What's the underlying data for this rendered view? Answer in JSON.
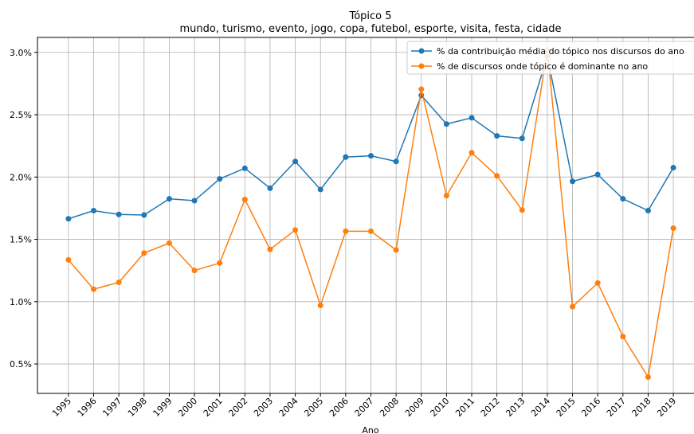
{
  "chart_data": {
    "type": "line",
    "title": "Tópico 5",
    "subtitle": "mundo, turismo, evento, jogo, copa, futebol, esporte, visita, festa, cidade",
    "x_label": "Ano",
    "x": [
      1995,
      1996,
      1997,
      1998,
      1999,
      2000,
      2001,
      2002,
      2003,
      2004,
      2005,
      2006,
      2007,
      2008,
      2009,
      2010,
      2011,
      2012,
      2013,
      2014,
      2015,
      2016,
      2017,
      2018,
      2019
    ],
    "series": [
      {
        "name": "% da contribuição média do tópico nos discursos do ano",
        "color": "#1f77b4",
        "values": [
          1.665,
          1.73,
          1.7,
          1.695,
          1.825,
          1.81,
          1.985,
          2.07,
          1.91,
          2.125,
          1.9,
          2.16,
          2.17,
          2.125,
          2.655,
          2.425,
          2.475,
          2.33,
          2.31,
          2.97,
          1.965,
          2.02,
          1.825,
          1.73,
          2.075
        ]
      },
      {
        "name": "% de discursos onde tópico é dominante no ano",
        "color": "#ff7f0e",
        "values": [
          1.335,
          1.1,
          1.155,
          1.39,
          1.47,
          1.25,
          1.31,
          1.82,
          1.42,
          1.575,
          0.97,
          1.565,
          1.565,
          1.415,
          2.705,
          1.85,
          2.195,
          2.01,
          1.735,
          3.02,
          0.96,
          1.15,
          0.72,
          0.395,
          1.59
        ]
      }
    ],
    "xlim": [
      1993.77,
      2019.82
    ],
    "xticks": [
      1995,
      1996,
      1997,
      1998,
      1999,
      2000,
      2001,
      2002,
      2003,
      2004,
      2005,
      2006,
      2007,
      2008,
      2009,
      2010,
      2011,
      2012,
      2013,
      2014,
      2015,
      2016,
      2017,
      2018,
      2019
    ],
    "ylim": [
      0.264,
      3.12
    ],
    "yticks": [
      {
        "value": 0.5,
        "label": "0.5%"
      },
      {
        "value": 1.0,
        "label": "1.0%"
      },
      {
        "value": 1.5,
        "label": "1.5%"
      },
      {
        "value": 2.0,
        "label": "2.0%"
      },
      {
        "value": 2.5,
        "label": "2.5%"
      },
      {
        "value": 3.0,
        "label": "3.0%"
      }
    ],
    "grid": true,
    "legend": "upper right"
  }
}
